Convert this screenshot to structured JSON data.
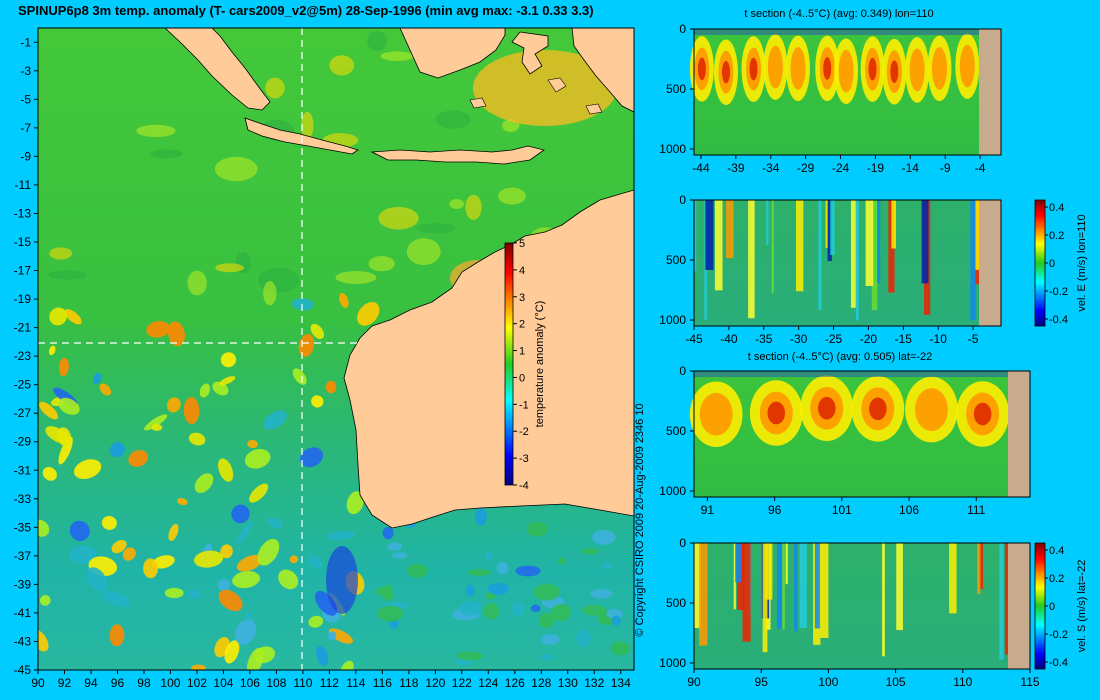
{
  "title": "SPINUP6p8 3m temp. anomaly (T- cars2009_v2@5m) 28-Sep-1996 (min avg max: -3.1 0.33 3.3)",
  "copyright": "© Copyright CSIRO 2009   20-Aug-2009 2346 10",
  "colors": {
    "background": "#00ccff",
    "land": "#ffcc99",
    "section_land": "#c8aa8c"
  },
  "chart_data": [
    {
      "type": "heatmap",
      "name": "map",
      "title": "",
      "xlabel": "",
      "ylabel": "",
      "xlim": [
        90,
        135
      ],
      "ylim": [
        -45,
        0
      ],
      "x_ticks": [
        "90",
        "92",
        "94",
        "96",
        "98",
        "100",
        "102",
        "104",
        "106",
        "108",
        "110",
        "112",
        "114",
        "116",
        "118",
        "120",
        "122",
        "124",
        "126",
        "128",
        "130",
        "132",
        "134"
      ],
      "y_ticks": [
        "-1",
        "-3",
        "-5",
        "-7",
        "-9",
        "-11",
        "-13",
        "-15",
        "-17",
        "-19",
        "-21",
        "-23",
        "-25",
        "-27",
        "-29",
        "-31",
        "-33",
        "-35",
        "-37",
        "-39",
        "-41",
        "-43",
        "-45"
      ],
      "section_lon": 110,
      "section_lat": -22,
      "colorbar": {
        "label": "temperature anomaly (°C)",
        "ticks": [
          "5",
          "4",
          "3",
          "2",
          "1",
          "0",
          "-1",
          "-2",
          "-3",
          "-4"
        ],
        "range": [
          -4,
          5
        ]
      }
    },
    {
      "type": "heatmap",
      "name": "t-section-lon110",
      "title": "t section (-4..5°C) (avg: 0.349) lon=110",
      "xlim": [
        -45,
        -1
      ],
      "ylim": [
        1050,
        0
      ],
      "x_ticks": [
        "-44",
        "-39",
        "-34",
        "-29",
        "-24",
        "-19",
        "-14",
        "-9",
        "-4"
      ],
      "y_ticks": [
        "0",
        "500",
        "1000"
      ]
    },
    {
      "type": "heatmap",
      "name": "vel-e-section-lon110",
      "title": "",
      "xlim": [
        -45,
        -1
      ],
      "ylim": [
        1050,
        0
      ],
      "x_ticks": [
        "-45",
        "-40",
        "-35",
        "-30",
        "-25",
        "-20",
        "-15",
        "-10",
        "-5"
      ],
      "y_ticks": [
        "0",
        "500",
        "1000"
      ],
      "colorbar": {
        "label": "vel. E (m/s) lon=110",
        "ticks": [
          "0.4",
          "0.2",
          "0",
          "-0.2",
          "-0.4"
        ],
        "range": [
          -0.45,
          0.45
        ]
      }
    },
    {
      "type": "heatmap",
      "name": "t-section-lat-22",
      "title": "t section (-4..5°C) (avg: 0.505) lat=-22",
      "xlim": [
        90,
        115
      ],
      "ylim": [
        1050,
        0
      ],
      "x_ticks": [
        "91",
        "96",
        "101",
        "106",
        "111"
      ],
      "y_ticks": [
        "0",
        "500",
        "1000"
      ]
    },
    {
      "type": "heatmap",
      "name": "vel-s-section-lat-22",
      "title": "",
      "xlim": [
        90,
        115
      ],
      "ylim": [
        1050,
        0
      ],
      "x_ticks": [
        "90",
        "95",
        "100",
        "105",
        "110",
        "115"
      ],
      "y_ticks": [
        "0",
        "500",
        "1000"
      ],
      "colorbar": {
        "label": "vel. S (m/s) lat=-22",
        "ticks": [
          "0.4",
          "0.2",
          "0",
          "-0.2",
          "-0.4"
        ],
        "range": [
          -0.45,
          0.45
        ]
      }
    }
  ]
}
